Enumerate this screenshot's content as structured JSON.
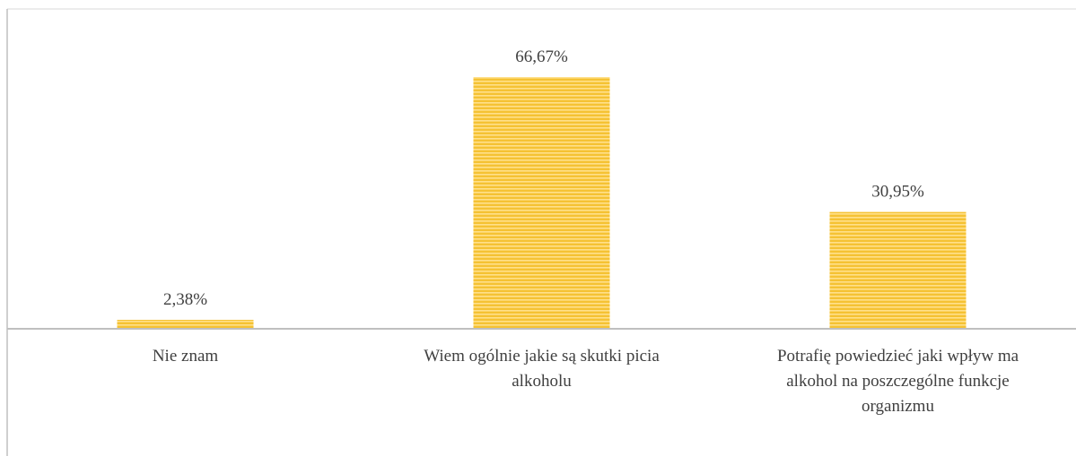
{
  "chart_data": {
    "type": "bar",
    "categories": [
      "Nie znam",
      "Wiem ogólnie jakie są skutki picia alkoholu",
      "Potrafię powiedzieć jaki wpływ ma alkohol na poszczególne funkcje organizmu"
    ],
    "category_lines": [
      [
        "Nie znam"
      ],
      [
        "Wiem ogólnie jakie są skutki picia",
        "alkoholu"
      ],
      [
        "Potrafię powiedzieć jaki wpływ ma",
        "alkohol na poszczególne funkcje",
        "organizmu"
      ]
    ],
    "values": [
      2.38,
      66.67,
      30.95
    ],
    "data_labels": [
      "2,38%",
      "66,67%",
      "30,95%"
    ],
    "ylim": [
      0,
      80
    ],
    "grid": false,
    "legend": "none",
    "title": "",
    "xlabel": "",
    "ylabel": "",
    "colors": {
      "bar": "#F5C233",
      "bar_stripe": "#FFE08A",
      "axis": "#BFBFBF",
      "text": "#404040"
    }
  }
}
